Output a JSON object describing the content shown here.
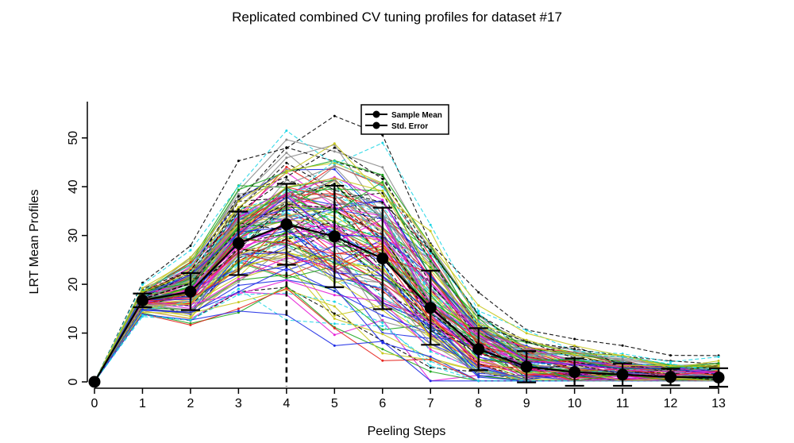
{
  "chart_data": {
    "type": "line",
    "title": "Replicated combined CV tuning profiles for dataset #17",
    "xlabel": "Peeling Steps",
    "ylabel": "LRT Mean Profiles",
    "x": [
      0,
      1,
      2,
      3,
      4,
      5,
      6,
      7,
      8,
      9,
      10,
      11,
      12,
      13
    ],
    "xlim": [
      0,
      13
    ],
    "ylim": [
      0,
      55
    ],
    "x_ticks": [
      0,
      1,
      2,
      3,
      4,
      5,
      6,
      7,
      8,
      9,
      10,
      11,
      12,
      13
    ],
    "y_ticks": [
      0,
      10,
      20,
      30,
      40,
      50
    ],
    "grid": false,
    "legend_placement": "top-center",
    "legend": [
      "Sample Mean",
      "Std. Error"
    ],
    "sample_mean": [
      0,
      16.7,
      18.5,
      28.4,
      32.3,
      29.8,
      25.3,
      15.2,
      6.7,
      3.1,
      2.0,
      1.5,
      1.0,
      0.9
    ],
    "std_error": [
      0,
      1.4,
      3.8,
      6.5,
      8.3,
      10.4,
      10.4,
      7.6,
      4.3,
      3.2,
      2.8,
      2.3,
      1.7,
      1.9
    ],
    "optimal_step": 4,
    "replicate_colors": [
      "#000000",
      "#e6261f",
      "#1fa81f",
      "#1f2ee6",
      "#1fd6e6",
      "#e61fd6",
      "#c8c81f",
      "#8c8c8c"
    ],
    "replicate_count": 128
  }
}
